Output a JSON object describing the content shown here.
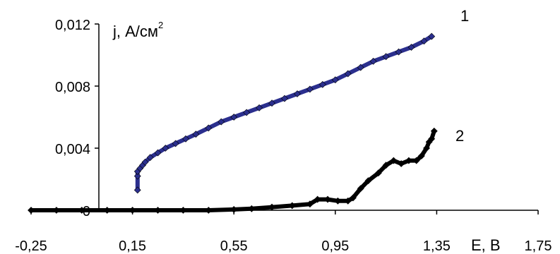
{
  "chart_data": {
    "type": "scatter",
    "title": "",
    "ylabel": {
      "main": "j, А/см",
      "sup": "2"
    },
    "xlabel": "E, B",
    "xlim": [
      -0.25,
      1.75
    ],
    "ylim": [
      0,
      0.012
    ],
    "x_ticks": [
      "-0,25",
      "0,15",
      "0,55",
      "0,95",
      "1,35",
      "1,75"
    ],
    "y_ticks": [
      "0",
      "0,004",
      "0,008",
      "0,012"
    ],
    "grid": false,
    "legend": "none",
    "series": [
      {
        "annotation": "1",
        "color": "#2b2f8e",
        "marker": "diamond",
        "points": [
          [
            0.17,
            0.0013
          ],
          [
            0.17,
            0.0022
          ],
          [
            0.17,
            0.0025
          ],
          [
            0.18,
            0.0027
          ],
          [
            0.19,
            0.0029
          ],
          [
            0.2,
            0.0031
          ],
          [
            0.22,
            0.0034
          ],
          [
            0.25,
            0.0037
          ],
          [
            0.28,
            0.004
          ],
          [
            0.32,
            0.0043
          ],
          [
            0.36,
            0.0046
          ],
          [
            0.4,
            0.0049
          ],
          [
            0.45,
            0.0053
          ],
          [
            0.5,
            0.0057
          ],
          [
            0.55,
            0.006
          ],
          [
            0.6,
            0.0063
          ],
          [
            0.65,
            0.0066
          ],
          [
            0.7,
            0.0069
          ],
          [
            0.75,
            0.0072
          ],
          [
            0.8,
            0.0075
          ],
          [
            0.85,
            0.0078
          ],
          [
            0.9,
            0.0081
          ],
          [
            0.95,
            0.0084
          ],
          [
            1.0,
            0.0088
          ],
          [
            1.05,
            0.0092
          ],
          [
            1.1,
            0.0096
          ],
          [
            1.15,
            0.0099
          ],
          [
            1.2,
            0.0102
          ],
          [
            1.25,
            0.0105
          ],
          [
            1.3,
            0.0109
          ],
          [
            1.33,
            0.0112
          ]
        ]
      },
      {
        "annotation": "2",
        "color": "#000000",
        "marker": "diamond",
        "points": [
          [
            -0.25,
            0.0
          ],
          [
            -0.15,
            0.0
          ],
          [
            -0.05,
            0.0
          ],
          [
            0.05,
            0.0
          ],
          [
            0.15,
            0.0
          ],
          [
            0.25,
            0.0
          ],
          [
            0.35,
            0.0
          ],
          [
            0.45,
            0.0
          ],
          [
            0.55,
            5e-05
          ],
          [
            0.62,
            0.0001
          ],
          [
            0.7,
            0.0002
          ],
          [
            0.78,
            0.0003
          ],
          [
            0.85,
            0.0004
          ],
          [
            0.88,
            0.0007
          ],
          [
            0.92,
            0.0007
          ],
          [
            0.96,
            0.0006
          ],
          [
            1.0,
            0.0006
          ],
          [
            1.02,
            0.0008
          ],
          [
            1.05,
            0.0014
          ],
          [
            1.08,
            0.0019
          ],
          [
            1.12,
            0.0024
          ],
          [
            1.15,
            0.0029
          ],
          [
            1.18,
            0.0032
          ],
          [
            1.21,
            0.003
          ],
          [
            1.24,
            0.0032
          ],
          [
            1.27,
            0.0032
          ],
          [
            1.29,
            0.0035
          ],
          [
            1.31,
            0.004
          ],
          [
            1.32,
            0.0044
          ],
          [
            1.33,
            0.0046
          ],
          [
            1.34,
            0.0051
          ]
        ]
      }
    ]
  }
}
